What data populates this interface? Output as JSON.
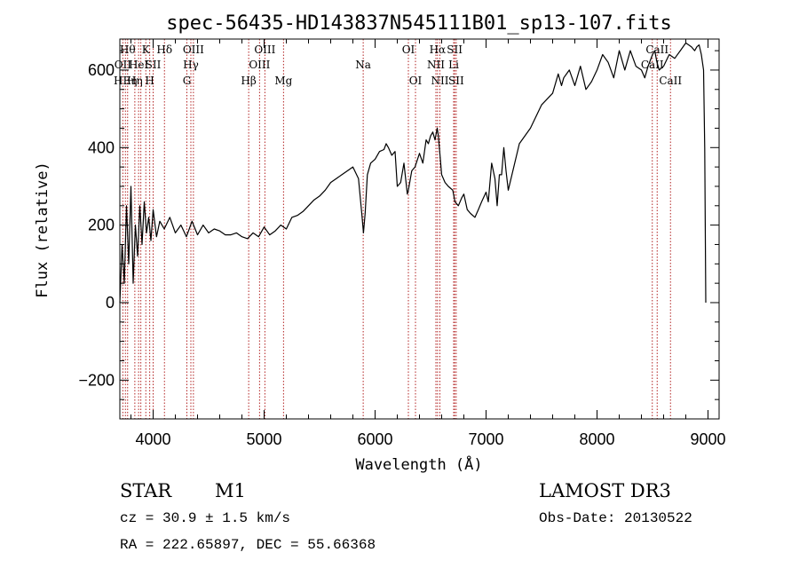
{
  "chart_data": {
    "type": "line",
    "title": "spec-56435-HD143837N545111B01_sp13-107.fits",
    "xlabel": "Wavelength (Å)",
    "ylabel": "Flux (relative)",
    "xlim": [
      3700,
      9100
    ],
    "ylim": [
      -300,
      680
    ],
    "xticks": [
      4000,
      5000,
      6000,
      7000,
      8000,
      9000
    ],
    "yticks": [
      -200,
      0,
      200,
      400,
      600
    ],
    "series": [
      {
        "x": [
          3700,
          3720,
          3740,
          3760,
          3780,
          3800,
          3820,
          3840,
          3860,
          3880,
          3900,
          3920,
          3940,
          3960,
          3980,
          4000,
          4030,
          4060,
          4100,
          4150,
          4200,
          4250,
          4300,
          4350,
          4400,
          4450,
          4500,
          4550,
          4600,
          4650,
          4700,
          4750,
          4800,
          4850,
          4900,
          4950,
          5000,
          5050,
          5100,
          5150,
          5200,
          5250,
          5300,
          5350,
          5400,
          5450,
          5500,
          5550,
          5600,
          5650,
          5700,
          5750,
          5800,
          5850,
          5880,
          5895,
          5910,
          5930,
          5960,
          6000,
          6040,
          6080,
          6100,
          6120,
          6150,
          6180,
          6200,
          6230,
          6260,
          6290,
          6300,
          6330,
          6360,
          6400,
          6430,
          6460,
          6480,
          6500,
          6520,
          6540,
          6560,
          6570,
          6600,
          6630,
          6660,
          6700,
          6720,
          6750,
          6780,
          6800,
          6830,
          6860,
          6900,
          6930,
          6960,
          7000,
          7020,
          7050,
          7080,
          7100,
          7120,
          7140,
          7160,
          7180,
          7200,
          7300,
          7400,
          7500,
          7600,
          7650,
          7680,
          7700,
          7750,
          7800,
          7850,
          7900,
          7950,
          8000,
          8050,
          8100,
          8150,
          8200,
          8250,
          8300,
          8350,
          8400,
          8430,
          8460,
          8500,
          8520,
          8540,
          8560,
          8600,
          8650,
          8700,
          8750,
          8800,
          8850,
          8880,
          8900,
          8920,
          8940,
          8960,
          8970,
          8980
        ],
        "y": [
          0,
          150,
          50,
          250,
          100,
          300,
          50,
          200,
          120,
          250,
          150,
          260,
          180,
          220,
          160,
          240,
          170,
          210,
          190,
          220,
          180,
          200,
          170,
          210,
          175,
          200,
          180,
          190,
          185,
          175,
          175,
          180,
          170,
          165,
          180,
          170,
          195,
          175,
          185,
          200,
          190,
          220,
          225,
          235,
          250,
          265,
          275,
          290,
          310,
          320,
          330,
          340,
          350,
          320,
          230,
          180,
          230,
          330,
          360,
          370,
          390,
          395,
          410,
          400,
          380,
          390,
          300,
          310,
          360,
          280,
          290,
          340,
          350,
          385,
          360,
          420,
          410,
          430,
          440,
          420,
          450,
          430,
          330,
          310,
          300,
          290,
          260,
          250,
          270,
          280,
          240,
          230,
          220,
          240,
          260,
          285,
          260,
          360,
          320,
          250,
          330,
          330,
          400,
          340,
          290,
          410,
          450,
          510,
          540,
          590,
          560,
          580,
          600,
          560,
          610,
          550,
          570,
          600,
          640,
          620,
          580,
          650,
          600,
          650,
          610,
          600,
          580,
          610,
          640,
          650,
          620,
          600,
          610,
          640,
          630,
          650,
          670,
          660,
          650,
          660,
          665,
          640,
          600,
          400,
          0
        ]
      }
    ],
    "lines": [
      {
        "wavelength": 3727,
        "label": "OII",
        "row": 2
      },
      {
        "wavelength": 3750,
        "label": "HEη",
        "row": 3
      },
      {
        "wavelength": 3770,
        "label": "Hθ",
        "row": 1
      },
      {
        "wavelength": 3835,
        "label": "Hη",
        "row": 3
      },
      {
        "wavelength": 3869,
        "label": "HeI",
        "row": 2
      },
      {
        "wavelength": 3889,
        "label": "",
        "row": 0
      },
      {
        "wavelength": 3934,
        "label": "K",
        "row": 1
      },
      {
        "wavelength": 3969,
        "label": "H",
        "row": 3
      },
      {
        "wavelength": 4000,
        "label": "SII",
        "row": 2
      },
      {
        "wavelength": 4102,
        "label": "Hδ",
        "row": 1
      },
      {
        "wavelength": 4304,
        "label": "G",
        "row": 3
      },
      {
        "wavelength": 4340,
        "label": "Hγ",
        "row": 2
      },
      {
        "wavelength": 4363,
        "label": "OIII",
        "row": 1
      },
      {
        "wavelength": 4861,
        "label": "Hβ",
        "row": 3
      },
      {
        "wavelength": 4959,
        "label": "OIII",
        "row": 2
      },
      {
        "wavelength": 5007,
        "label": "OIII",
        "row": 1
      },
      {
        "wavelength": 5175,
        "label": "Mg",
        "row": 3
      },
      {
        "wavelength": 5893,
        "label": "Na",
        "row": 2
      },
      {
        "wavelength": 6300,
        "label": "OI",
        "row": 1
      },
      {
        "wavelength": 6364,
        "label": "OI",
        "row": 3
      },
      {
        "wavelength": 6548,
        "label": "NII",
        "row": 2
      },
      {
        "wavelength": 6563,
        "label": "Hα",
        "row": 1
      },
      {
        "wavelength": 6584,
        "label": "NII",
        "row": 3
      },
      {
        "wavelength": 6708,
        "label": "Li",
        "row": 2
      },
      {
        "wavelength": 6717,
        "label": "SII",
        "row": 1
      },
      {
        "wavelength": 6731,
        "label": "SII",
        "row": 3
      },
      {
        "wavelength": 8498,
        "label": "CaII",
        "row": 2
      },
      {
        "wavelength": 8542,
        "label": "CaII",
        "row": 1
      },
      {
        "wavelength": 8662,
        "label": "CaII",
        "row": 3
      }
    ]
  },
  "info": {
    "class": "STAR",
    "subclass": "M1",
    "cz": "cz = 30.9 ± 1.5 km/s",
    "radec": "RA = 222.65897, DEC =  55.66368",
    "survey": "LAMOST DR3",
    "obsdate": "Obs-Date: 20130522"
  }
}
